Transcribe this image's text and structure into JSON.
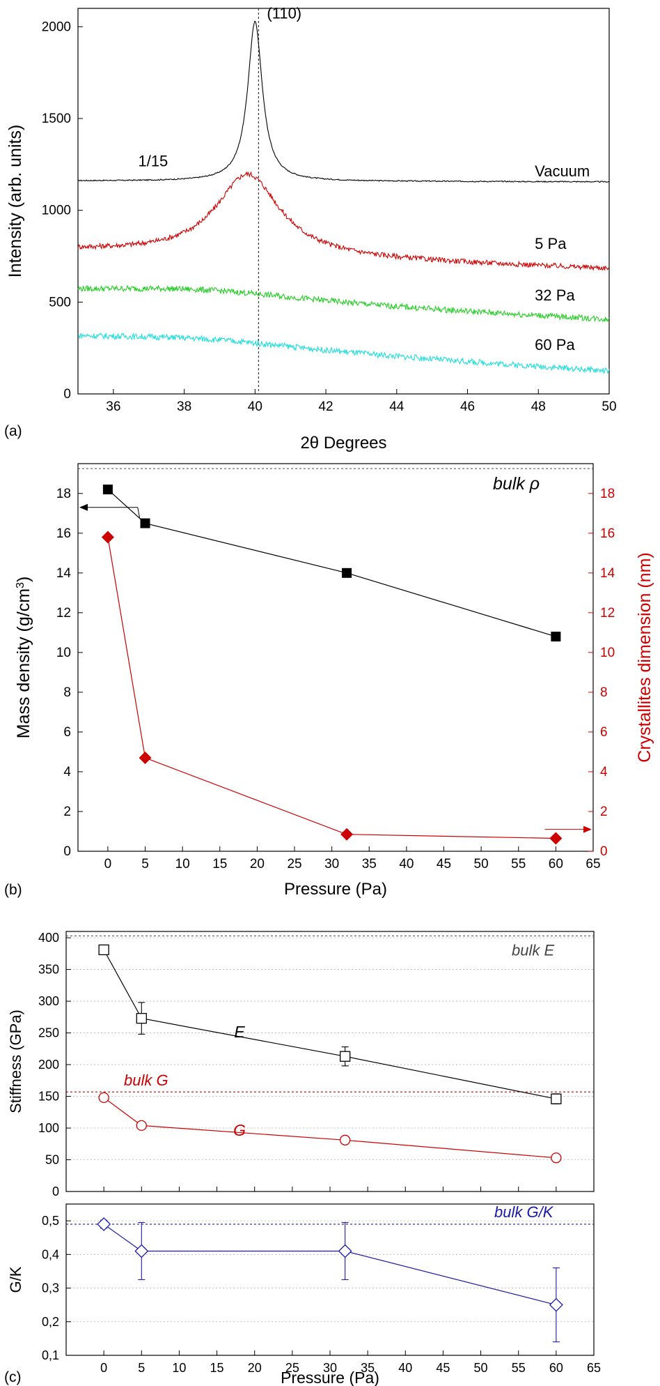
{
  "colors": {
    "black": "#000000",
    "red": "#cc0000",
    "green": "#22cc22",
    "cyan": "#22dddd",
    "blue": "#1a1aa6",
    "grid": "#b0b0b0",
    "ref_black": "#444444"
  },
  "chart_data": [
    {
      "id": "a",
      "panel_label": "(a)",
      "type": "line",
      "xlabel": "2θ Degrees",
      "ylabel": "Intensity (arb. units)",
      "xlim": [
        35,
        50
      ],
      "ylim": [
        0,
        2100
      ],
      "xticks": [
        36,
        38,
        40,
        42,
        44,
        46,
        48,
        50
      ],
      "yticks": [
        0,
        500,
        1000,
        1500,
        2000
      ],
      "grid": false,
      "annotations": [
        {
          "text": "(110)",
          "x": 40.1,
          "y": 2075
        },
        {
          "text": "1/15",
          "x": 36.7,
          "y": 1270
        },
        {
          "text": "Vacuum",
          "x": 47.9,
          "y": 1215
        },
        {
          "text": "5 Pa",
          "x": 47.9,
          "y": 820
        },
        {
          "text": "32 Pa",
          "x": 47.9,
          "y": 540
        },
        {
          "text": "60 Pa",
          "x": 47.9,
          "y": 270
        }
      ],
      "vline": {
        "x": 40.1,
        "style": "dotted"
      },
      "series": [
        {
          "name": "Vacuum",
          "color_key": "black",
          "baseline": [
            1160,
            1155
          ],
          "peak_center": 40.0,
          "peak_height": 870,
          "peak_width": 0.25,
          "noise": 3
        },
        {
          "name": "5 Pa",
          "color_key": "red",
          "baseline": [
            780,
            680
          ],
          "peak_center": 39.8,
          "peak_height": 450,
          "peak_width": 1.1,
          "noise": 14
        },
        {
          "name": "32 Pa",
          "color_key": "green",
          "baseline": [
            540,
            400
          ],
          "peak_center": 38.5,
          "peak_height": 60,
          "peak_width": 4.0,
          "noise": 16
        },
        {
          "name": "60 Pa",
          "color_key": "cyan",
          "baseline": [
            290,
            120
          ],
          "peak_center": 38.5,
          "peak_height": 50,
          "peak_width": 4.0,
          "noise": 16
        }
      ]
    },
    {
      "id": "b",
      "panel_label": "(b)",
      "type": "scatter",
      "xlabel": "Pressure (Pa)",
      "ylabel_left": "Mass density (g/cm",
      "ylabel_left_sup": "3",
      "ylabel_left_end": ")",
      "ylabel_right": "Crystallites dimension (nm)",
      "xlim": [
        -4,
        65
      ],
      "ylim": [
        0,
        19.5
      ],
      "xticks": [
        0,
        5,
        10,
        15,
        20,
        25,
        30,
        35,
        40,
        45,
        50,
        55,
        60,
        65
      ],
      "yticks": [
        0,
        2,
        4,
        6,
        8,
        10,
        12,
        14,
        16,
        18
      ],
      "grid": false,
      "reference": {
        "text": "bulk ρ",
        "y": 19.25
      },
      "series": [
        {
          "name": "Mass density",
          "axis": "left",
          "marker": "square-filled",
          "color_key": "black",
          "x": [
            0,
            5,
            32,
            60
          ],
          "y": [
            18.2,
            16.5,
            14.0,
            10.8
          ]
        },
        {
          "name": "Crystallites dimension",
          "axis": "right",
          "marker": "diamond-filled",
          "color_key": "red",
          "x": [
            0,
            5,
            32,
            60
          ],
          "y": [
            15.8,
            4.7,
            0.85,
            0.65
          ]
        }
      ]
    },
    {
      "id": "c_top",
      "panel_label": "",
      "type": "scatter",
      "xlabel": "",
      "ylabel": "Stiffness (GPa)",
      "xlim": [
        -5,
        65
      ],
      "ylim": [
        0,
        410
      ],
      "xticks": [
        0,
        5,
        10,
        15,
        20,
        25,
        30,
        35,
        40,
        45,
        50,
        55,
        60,
        65
      ],
      "yticks": [
        0,
        50,
        100,
        150,
        200,
        250,
        300,
        350,
        400
      ],
      "grid": true,
      "references": [
        {
          "text": "bulk E",
          "y": 403,
          "color_key": "ref_black"
        },
        {
          "text": "bulk G",
          "y": 157,
          "color_key": "red"
        }
      ],
      "series": [
        {
          "name": "E",
          "marker": "square-open",
          "color_key": "black",
          "x": [
            0,
            5,
            32,
            60
          ],
          "y": [
            381,
            273,
            213,
            146
          ],
          "err": [
            4,
            25,
            15,
            8
          ],
          "label_at": [
            18,
            243
          ]
        },
        {
          "name": "G",
          "marker": "circle-open",
          "color_key": "red",
          "x": [
            0,
            5,
            32,
            60
          ],
          "y": [
            148,
            104,
            81,
            53
          ],
          "err": [
            3,
            4,
            4,
            3
          ],
          "label_at": [
            18,
            88
          ]
        }
      ]
    },
    {
      "id": "c_bottom",
      "panel_label": "(c)",
      "type": "scatter",
      "xlabel": "Pressure (Pa)",
      "ylabel": "G/K",
      "xlim": [
        -5,
        65
      ],
      "ylim": [
        0.1,
        0.55
      ],
      "xticks": [
        0,
        5,
        10,
        15,
        20,
        25,
        30,
        35,
        40,
        45,
        50,
        55,
        60,
        65
      ],
      "ytick_labels": [
        "0,1",
        "0,2",
        "0,3",
        "0,4",
        "0,5"
      ],
      "yticks": [
        0.1,
        0.2,
        0.3,
        0.4,
        0.5
      ],
      "grid": true,
      "reference": {
        "text": "bulk G/K",
        "y": 0.49,
        "color_key": "blue"
      },
      "series": [
        {
          "name": "G/K",
          "marker": "diamond-open",
          "color_key": "blue",
          "x": [
            0,
            5,
            32,
            60
          ],
          "y": [
            0.49,
            0.41,
            0.41,
            0.25
          ],
          "err": [
            0.012,
            0.085,
            0.085,
            0.11
          ]
        }
      ]
    }
  ]
}
